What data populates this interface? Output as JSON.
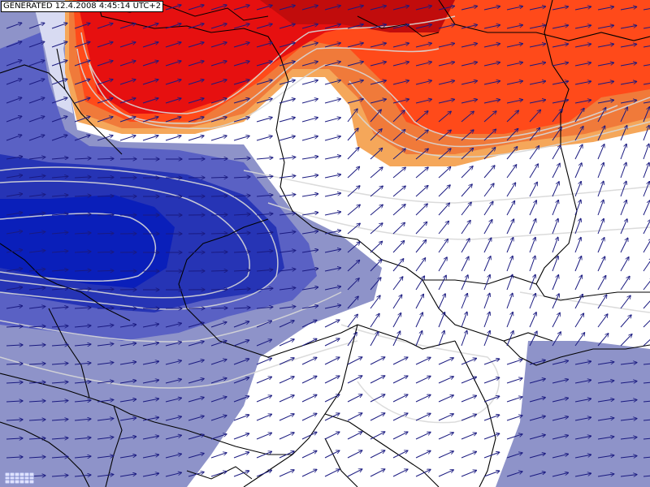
{
  "header": {
    "generated_label": "GENERATED 12.4.2008 4:45:14 UTC+2"
  },
  "legend_logo": {
    "icon": "grid-logo-icon"
  },
  "map": {
    "type": "weather-map",
    "colors": {
      "cold_light": "#8e93c9",
      "cold_mid": "#4b52c0",
      "cold_dark": "#1c2aa8",
      "cold_core": "#0a1fba",
      "warm_light": "#f08c4a",
      "warm_mid": "#ff4a1a",
      "warm_dark": "#e61010",
      "warm_core": "#c10c0c",
      "warm_band": "#f5a75a",
      "neutral": "#ffffff",
      "isoline": "#d8d8d8",
      "border": "#000000",
      "wind_arrow": "#1a1a80"
    },
    "wind": {
      "prevailing_direction": "west-southwest",
      "arrow_icon": "wind-arrow-icon"
    }
  }
}
